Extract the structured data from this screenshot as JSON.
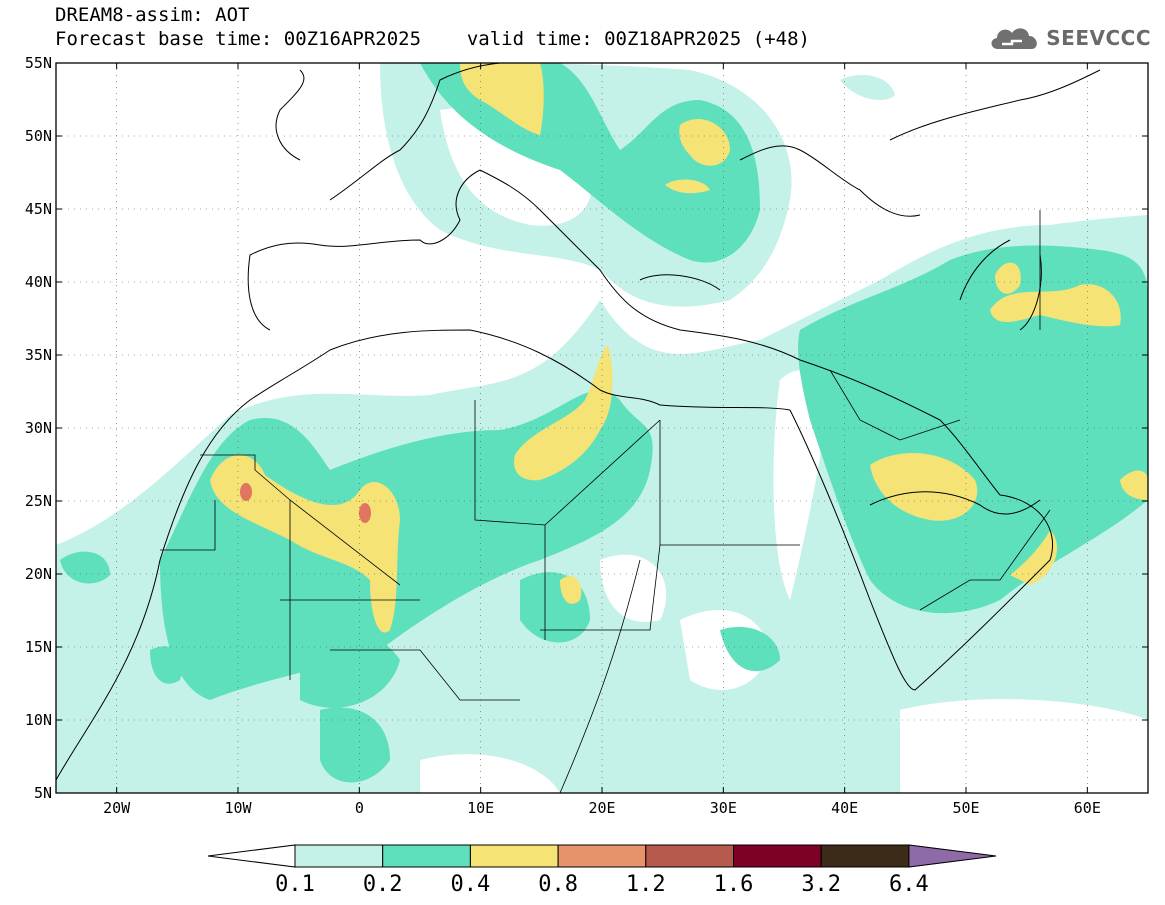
{
  "header": {
    "title": "DREAM8-assim: AOT",
    "base_time_label": "Forecast base time: 00Z16APR2025",
    "valid_time_label": "valid time: 00Z18APR2025 (+48)"
  },
  "logo": {
    "text": "SEEVCCC",
    "icon": "cloud-icon"
  },
  "map": {
    "lon_range": [
      -25,
      65
    ],
    "lat_range": [
      5,
      55
    ],
    "lat_ticks": [
      "5N",
      "10N",
      "15N",
      "20N",
      "25N",
      "30N",
      "35N",
      "40N",
      "45N",
      "50N",
      "55N"
    ],
    "lon_ticks": [
      "20W",
      "10W",
      "0",
      "10E",
      "20E",
      "30E",
      "40E",
      "50E",
      "60E"
    ],
    "gridlines": true,
    "variable": "AOT"
  },
  "colorbar": {
    "levels": [
      "0.1",
      "0.2",
      "0.4",
      "0.8",
      "1.2",
      "1.6",
      "3.2",
      "6.4"
    ],
    "colors": [
      "#ffffff",
      "#c4f1e8",
      "#5ee0bd",
      "#f5e376",
      "#e8926a",
      "#b55a4d",
      "#7d0025",
      "#3d2b1a",
      "#8e6aa8"
    ]
  }
}
